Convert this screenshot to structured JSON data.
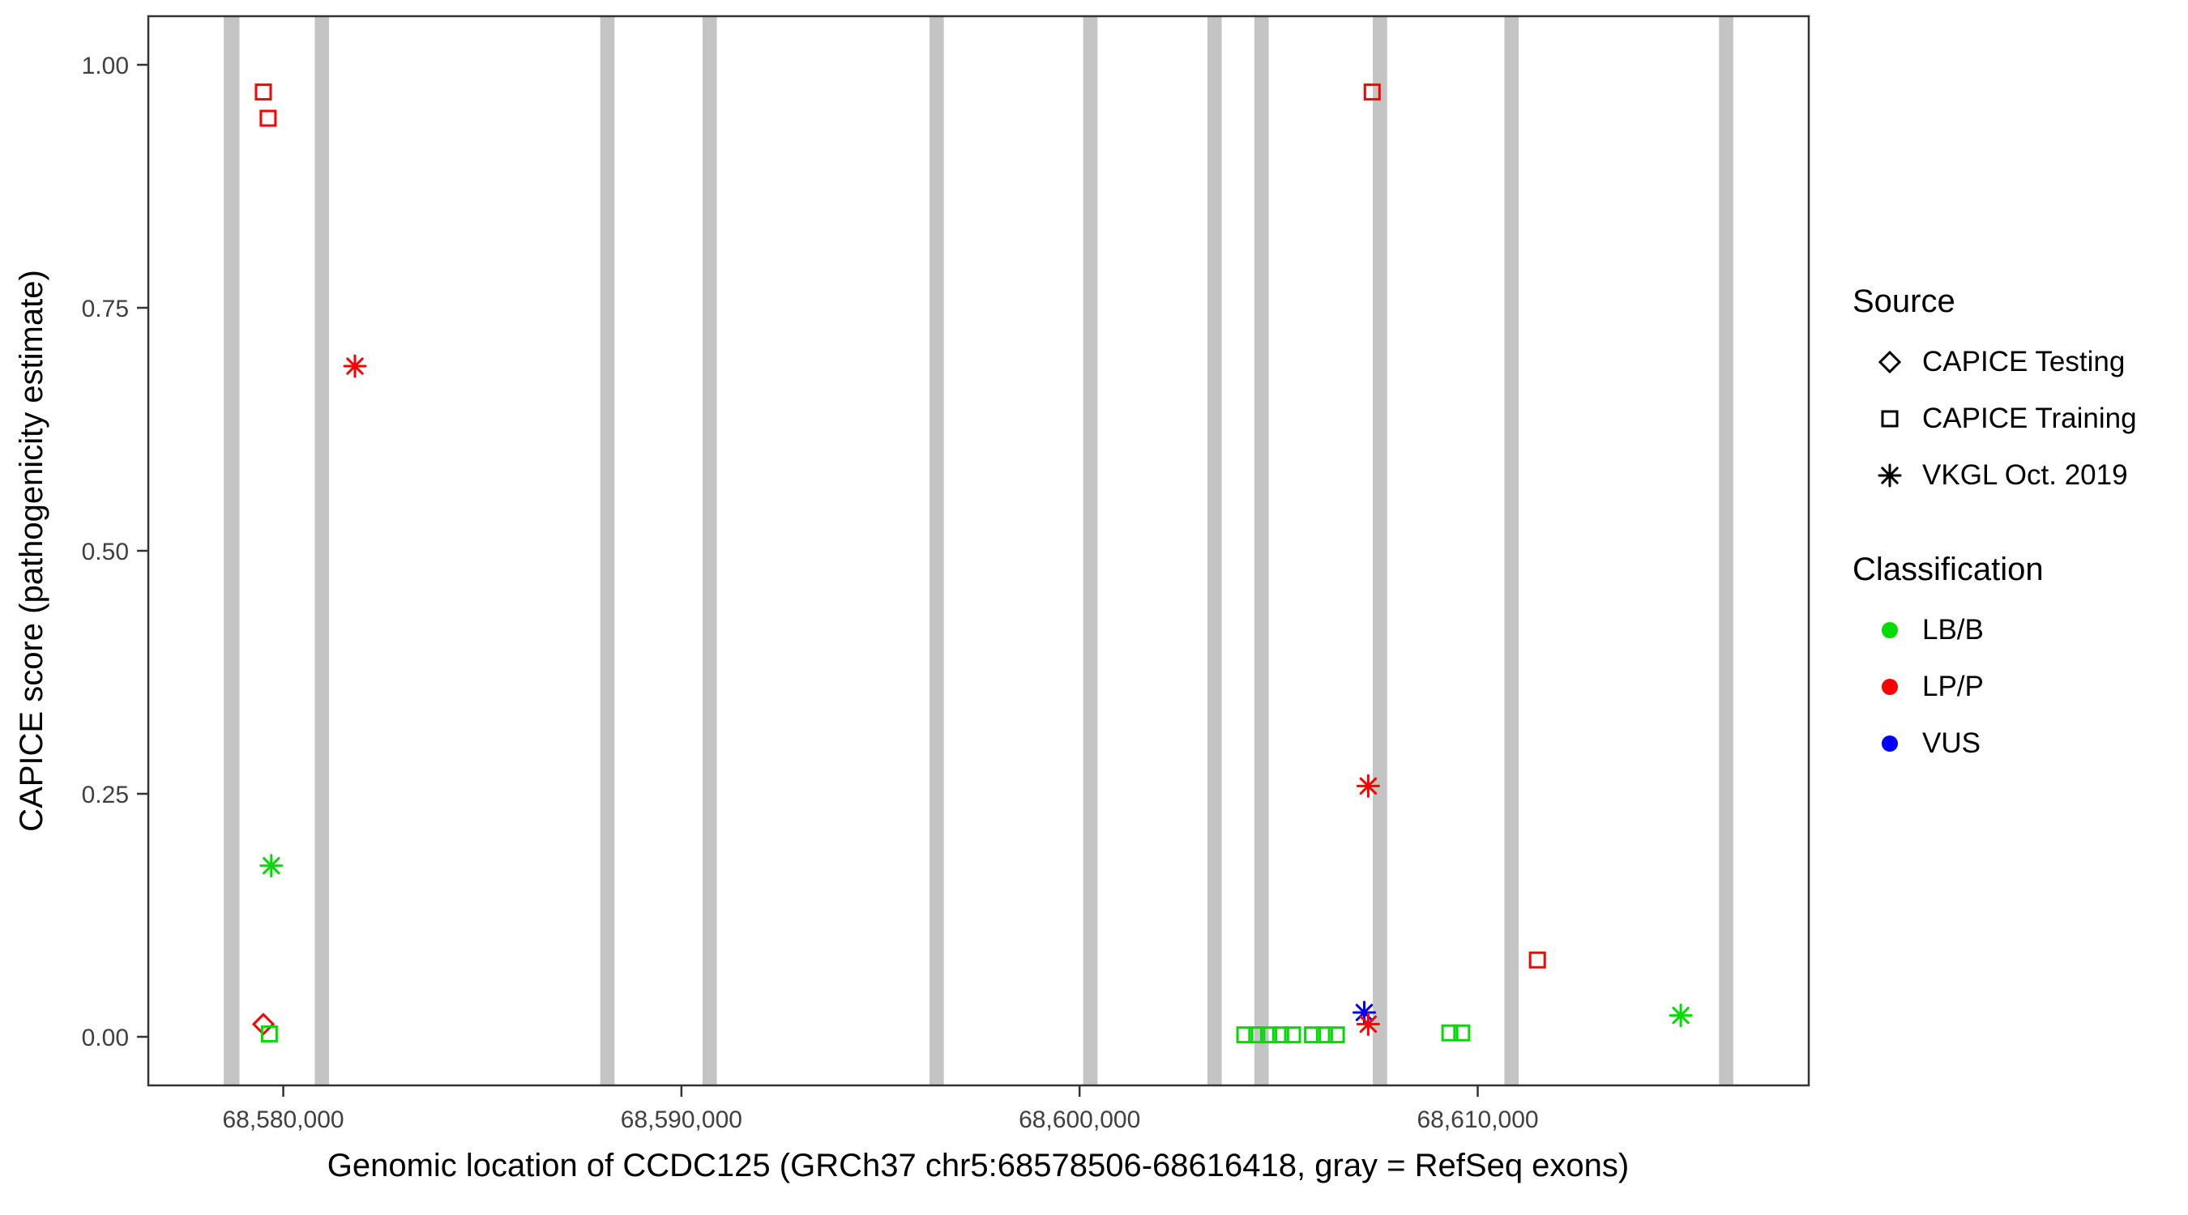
{
  "legend": {
    "source": {
      "title": "Source",
      "items": [
        {
          "label": "CAPICE Testing",
          "shape": "diamond-open"
        },
        {
          "label": "CAPICE Training",
          "shape": "square-open"
        },
        {
          "label": "VKGL Oct. 2019",
          "shape": "asterisk"
        }
      ]
    },
    "classification": {
      "title": "Classification",
      "items": [
        {
          "label": "LB/B",
          "shape": "circle-filled",
          "color": "#00DC00"
        },
        {
          "label": "LP/P",
          "shape": "circle-filled",
          "color": "#FF0000"
        },
        {
          "label": "VUS",
          "shape": "circle-filled",
          "color": "#0000FF"
        }
      ]
    }
  },
  "chart_data": {
    "type": "scatter",
    "title": "",
    "xlabel": "Genomic location of CCDC125 (GRCh37 chr5:68578506-68616418, gray = RefSeq exons)",
    "ylabel": "CAPICE score (pathogenicity estimate)",
    "x_domain": [
      68576610,
      68618314
    ],
    "y_domain": [
      -0.05,
      1.05
    ],
    "x_ticks": [
      {
        "value": 68580000,
        "label": "68,580,000"
      },
      {
        "value": 68590000,
        "label": "68,590,000"
      },
      {
        "value": 68600000,
        "label": "68,600,000"
      },
      {
        "value": 68610000,
        "label": "68,610,000"
      }
    ],
    "y_ticks": [
      {
        "value": 0.0,
        "label": "0.00"
      },
      {
        "value": 0.25,
        "label": "0.25"
      },
      {
        "value": 0.5,
        "label": "0.50"
      },
      {
        "value": 0.75,
        "label": "0.75"
      },
      {
        "value": 1.0,
        "label": "1.00"
      }
    ],
    "grid": false,
    "legend_position": "right",
    "exon_color": "#C4C4C4",
    "exons": [
      [
        68578506,
        68578900
      ],
      [
        68580790,
        68581150
      ],
      [
        68587960,
        68588320
      ],
      [
        68590530,
        68590890
      ],
      [
        68596230,
        68596590
      ],
      [
        68600090,
        68600450
      ],
      [
        68603210,
        68603570
      ],
      [
        68604390,
        68604750
      ],
      [
        68607365,
        68607725
      ],
      [
        68610670,
        68611030
      ],
      [
        68616060,
        68616418
      ]
    ],
    "shape_by_source": {
      "CAPICE Testing": "diamond-open",
      "CAPICE Training": "square-open",
      "VKGL Oct. 2019": "asterisk"
    },
    "color_by_classification": {
      "LB/B": "#00DC00",
      "LP/P": "#FF0000",
      "VUS": "#0000FF"
    },
    "points": [
      {
        "x": 68579500,
        "y": 0.972,
        "source": "CAPICE Training",
        "classification": "LP/P"
      },
      {
        "x": 68579620,
        "y": 0.945,
        "source": "CAPICE Training",
        "classification": "LP/P"
      },
      {
        "x": 68581800,
        "y": 0.69,
        "source": "VKGL Oct. 2019",
        "classification": "LP/P"
      },
      {
        "x": 68579700,
        "y": 0.176,
        "source": "VKGL Oct. 2019",
        "classification": "LB/B"
      },
      {
        "x": 68579500,
        "y": 0.013,
        "source": "CAPICE Testing",
        "classification": "LP/P"
      },
      {
        "x": 68579650,
        "y": 0.003,
        "source": "CAPICE Training",
        "classification": "LB/B"
      },
      {
        "x": 68604150,
        "y": 0.002,
        "source": "CAPICE Training",
        "classification": "LB/B"
      },
      {
        "x": 68604450,
        "y": 0.002,
        "source": "CAPICE Training",
        "classification": "LB/B"
      },
      {
        "x": 68604750,
        "y": 0.002,
        "source": "CAPICE Training",
        "classification": "LB/B"
      },
      {
        "x": 68605050,
        "y": 0.002,
        "source": "CAPICE Training",
        "classification": "LB/B"
      },
      {
        "x": 68605350,
        "y": 0.002,
        "source": "CAPICE Training",
        "classification": "LB/B"
      },
      {
        "x": 68605850,
        "y": 0.002,
        "source": "CAPICE Training",
        "classification": "LB/B"
      },
      {
        "x": 68606150,
        "y": 0.002,
        "source": "CAPICE Training",
        "classification": "LB/B"
      },
      {
        "x": 68606450,
        "y": 0.002,
        "source": "CAPICE Training",
        "classification": "LB/B"
      },
      {
        "x": 68607150,
        "y": 0.025,
        "source": "VKGL Oct. 2019",
        "classification": "VUS"
      },
      {
        "x": 68607250,
        "y": 0.013,
        "source": "VKGL Oct. 2019",
        "classification": "LP/P"
      },
      {
        "x": 68607250,
        "y": 0.258,
        "source": "VKGL Oct. 2019",
        "classification": "LP/P"
      },
      {
        "x": 68607350,
        "y": 0.972,
        "source": "CAPICE Training",
        "classification": "LP/P"
      },
      {
        "x": 68611500,
        "y": 0.079,
        "source": "CAPICE Training",
        "classification": "LP/P"
      },
      {
        "x": 68609300,
        "y": 0.004,
        "source": "CAPICE Training",
        "classification": "LB/B"
      },
      {
        "x": 68609600,
        "y": 0.004,
        "source": "CAPICE Training",
        "classification": "LB/B"
      },
      {
        "x": 68615100,
        "y": 0.022,
        "source": "VKGL Oct. 2019",
        "classification": "LB/B"
      }
    ]
  }
}
